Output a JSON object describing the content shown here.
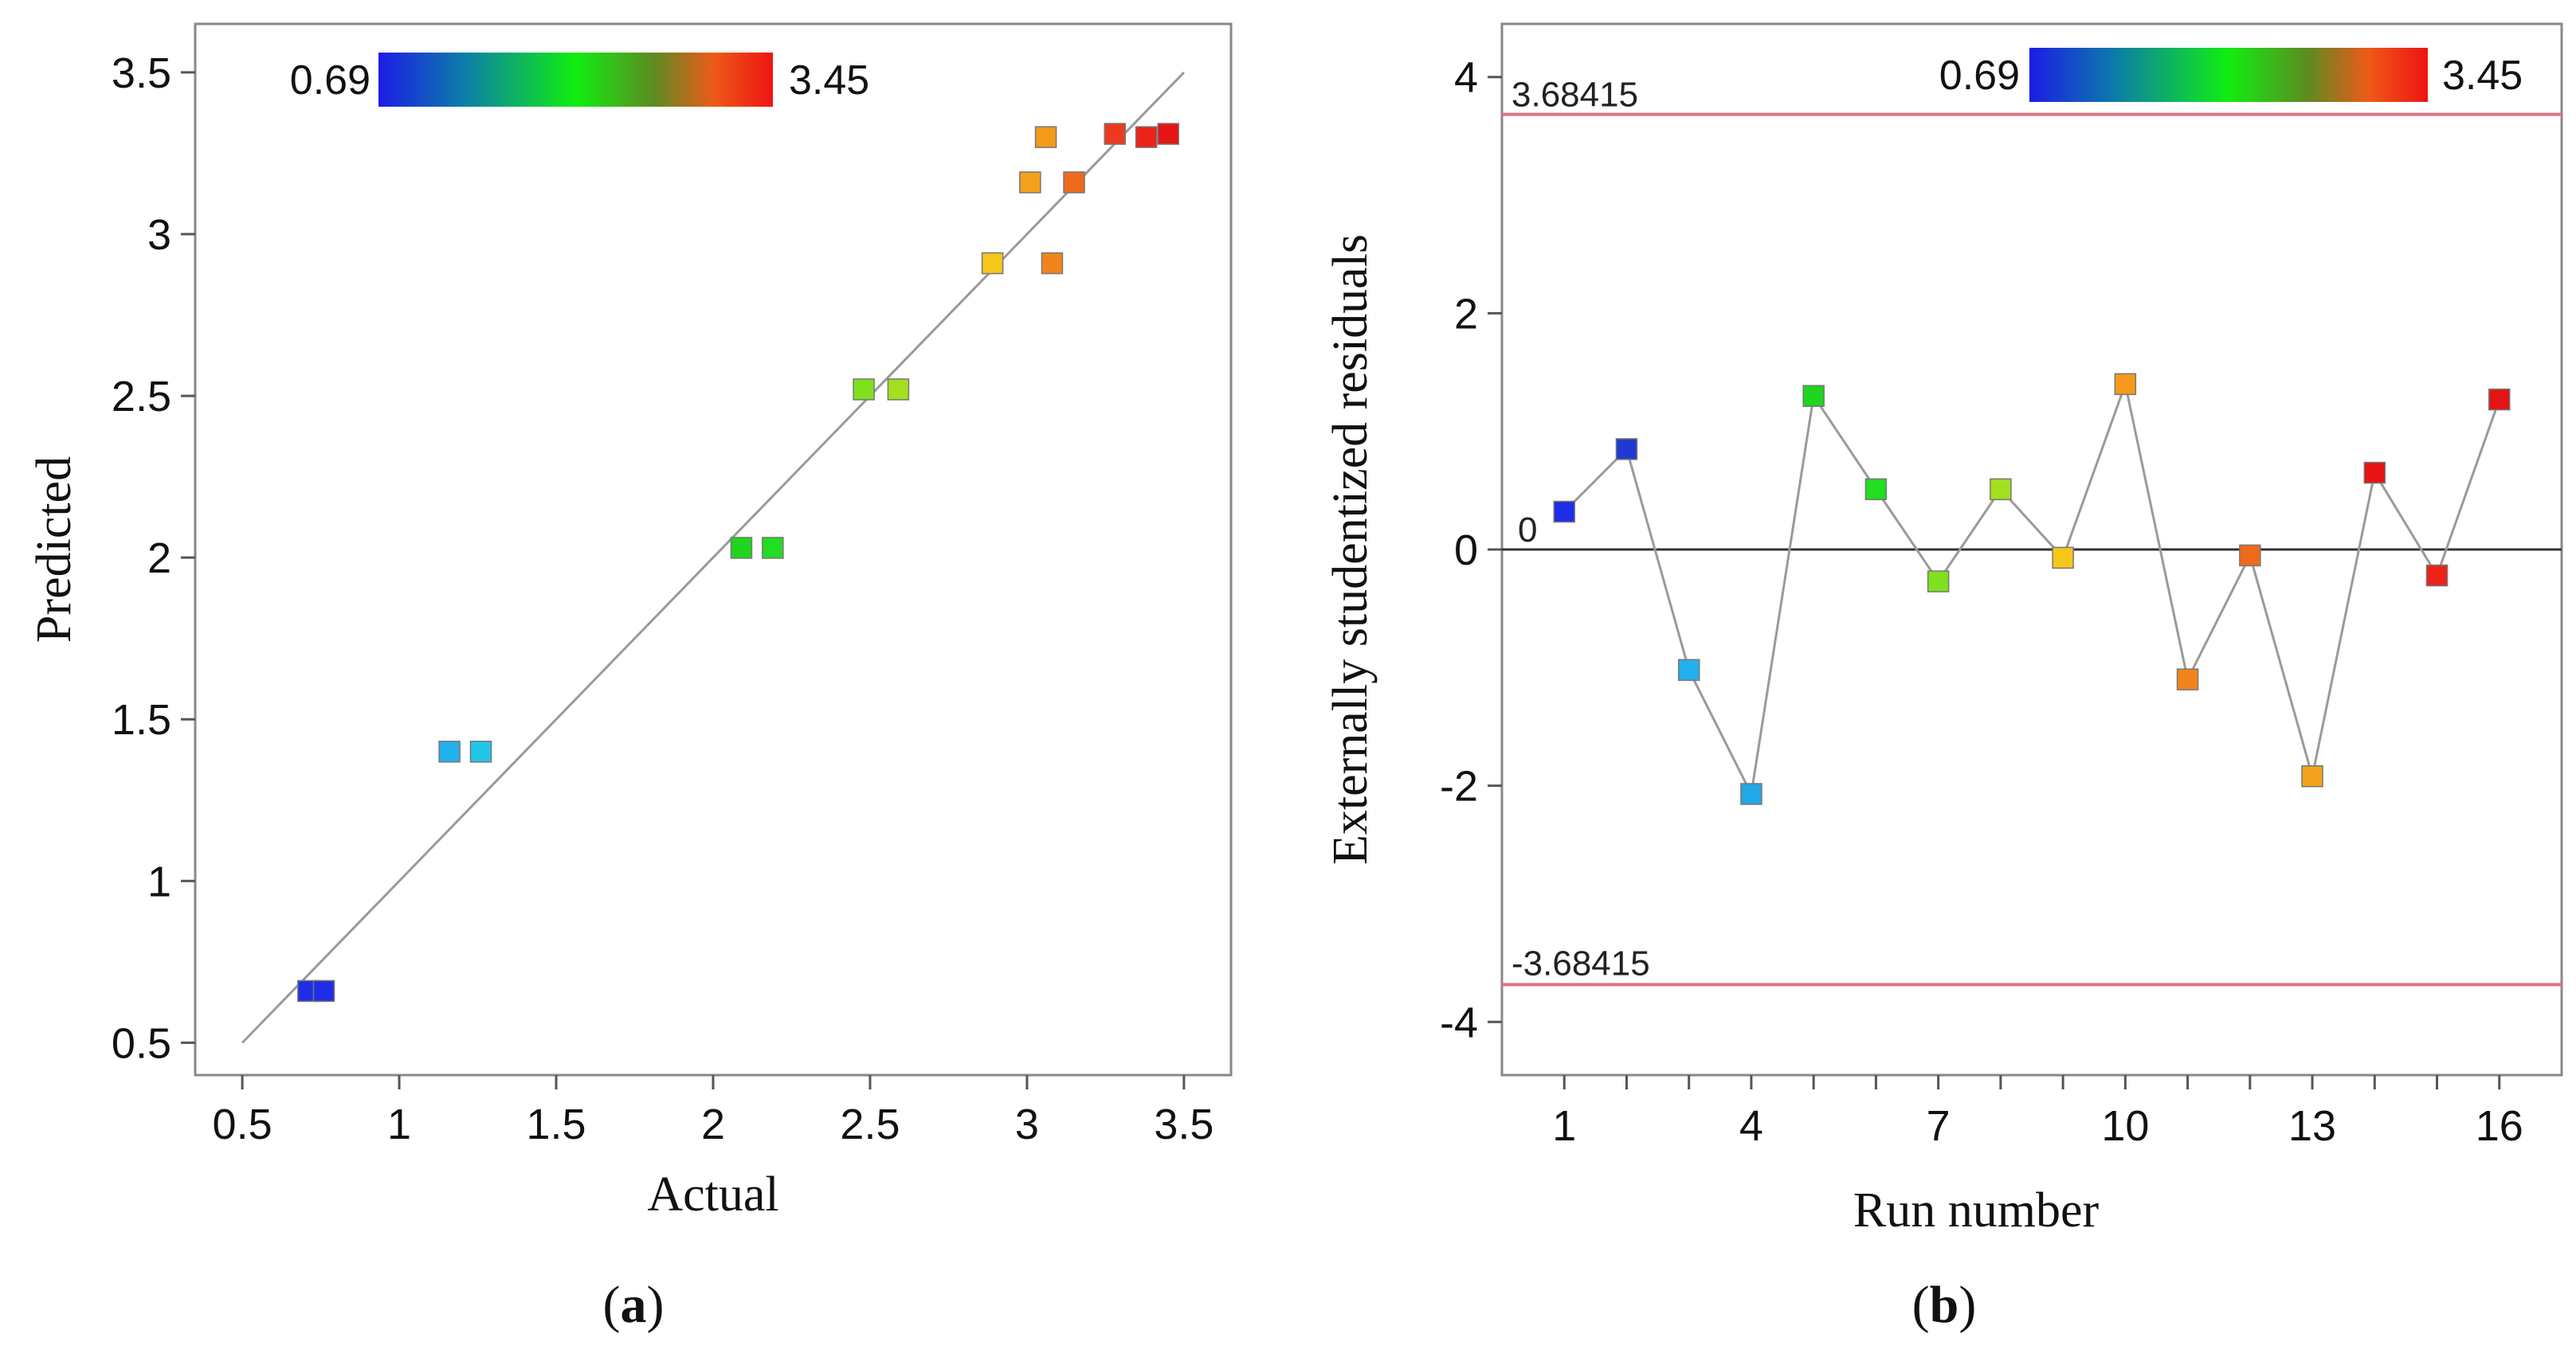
{
  "chart_data": [
    {
      "type": "scatter",
      "panel": "a",
      "caption": {
        "open": "(",
        "letter": "a",
        "close": ")"
      },
      "xlabel": "Actual",
      "ylabel": "Predicted",
      "xlim": [
        0.35,
        3.65
      ],
      "ylim": [
        0.4,
        3.65
      ],
      "xticks": [
        "0.5",
        "1",
        "1.5",
        "2",
        "2.5",
        "3",
        "3.5"
      ],
      "yticks": [
        "0.5",
        "1",
        "1.5",
        "2",
        "2.5",
        "3",
        "3.5"
      ],
      "colorbar": {
        "min_label": "0.69",
        "max_label": "3.45"
      },
      "reference_line": [
        [
          0.5,
          0.5
        ],
        [
          3.5,
          3.5
        ]
      ],
      "points": [
        {
          "x": 0.71,
          "y": 0.66,
          "color": "#1f2ee6"
        },
        {
          "x": 0.76,
          "y": 0.66,
          "color": "#1f2ee6"
        },
        {
          "x": 1.16,
          "y": 1.4,
          "color": "#22b0ee"
        },
        {
          "x": 1.26,
          "y": 1.4,
          "color": "#22c6e6"
        },
        {
          "x": 2.09,
          "y": 2.03,
          "color": "#1ed61e"
        },
        {
          "x": 2.19,
          "y": 2.03,
          "color": "#22dd22"
        },
        {
          "x": 2.48,
          "y": 2.52,
          "color": "#7ee01e"
        },
        {
          "x": 2.59,
          "y": 2.52,
          "color": "#a4e01e"
        },
        {
          "x": 2.89,
          "y": 2.91,
          "color": "#f5c71b"
        },
        {
          "x": 3.01,
          "y": 3.16,
          "color": "#f5a11b"
        },
        {
          "x": 3.06,
          "y": 3.3,
          "color": "#f59a1b"
        },
        {
          "x": 3.08,
          "y": 2.91,
          "color": "#f3841b"
        },
        {
          "x": 3.15,
          "y": 3.16,
          "color": "#ef6a1c"
        },
        {
          "x": 3.28,
          "y": 3.31,
          "color": "#ee3a1c"
        },
        {
          "x": 3.38,
          "y": 3.3,
          "color": "#ea2418"
        },
        {
          "x": 3.45,
          "y": 3.31,
          "color": "#e61414"
        }
      ]
    },
    {
      "type": "line",
      "panel": "b",
      "caption": {
        "open": "(",
        "letter": "b",
        "close": ")"
      },
      "xlabel": "Run number",
      "ylabel": "Externally studentized residuals",
      "xlim": [
        0,
        17
      ],
      "ylim": [
        -4.45,
        4.45
      ],
      "xticks": [
        "1",
        "4",
        "7",
        "10",
        "13",
        "16"
      ],
      "yticks": [
        "4",
        "2",
        "0",
        "-2",
        "-4"
      ],
      "colorbar": {
        "min_label": "0.69",
        "max_label": "3.45"
      },
      "limits": {
        "upper": 3.68415,
        "upper_label": "3.68415",
        "lower": -3.68415,
        "lower_label": "-3.68415",
        "zero_label": "0"
      },
      "x": [
        1,
        2,
        3,
        4,
        5,
        6,
        7,
        8,
        9,
        10,
        11,
        12,
        13,
        14,
        15,
        16
      ],
      "y": [
        0.32,
        0.85,
        -1.02,
        -2.07,
        1.3,
        0.51,
        -0.27,
        0.51,
        -0.07,
        1.4,
        -1.1,
        -0.05,
        -1.92,
        0.65,
        -0.22,
        1.27
      ],
      "colors": [
        "#1f2ee6",
        "#1f3ad0",
        "#22b0ee",
        "#22a8e6",
        "#1ed61e",
        "#22dd22",
        "#7ee01e",
        "#a4e01e",
        "#f5c71b",
        "#f59a1b",
        "#f3841b",
        "#ef6a1c",
        "#f5a11b",
        "#e61414",
        "#ea2418",
        "#e61414"
      ]
    }
  ]
}
